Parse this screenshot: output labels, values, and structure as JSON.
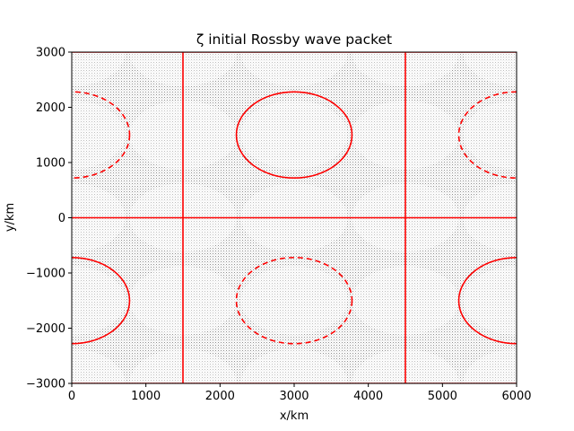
{
  "chart_data": {
    "type": "contour",
    "title": "ζ initial Rossby wave packet",
    "xlabel": "x/km",
    "ylabel": "y/km",
    "xlim": [
      0,
      6000
    ],
    "ylim": [
      -3000,
      3000
    ],
    "xticks": [
      0,
      1000,
      2000,
      3000,
      4000,
      5000,
      6000
    ],
    "yticks": [
      -3000,
      -2000,
      -1000,
      0,
      1000,
      2000,
      3000
    ],
    "xtick_labels": [
      "0",
      "1000",
      "2000",
      "3000",
      "4000",
      "5000",
      "6000"
    ],
    "ytick_labels": [
      "−3000",
      "−2000",
      "−1000",
      "0",
      "1000",
      "2000",
      "3000"
    ],
    "grid": false,
    "background": "dense grey quiver/stipple field",
    "contour_color": "#ff0000",
    "zero_contours": {
      "vertical_x": [
        1500,
        4500
      ],
      "horizontal_y": [
        0
      ]
    },
    "positive_contours": [
      {
        "cx": 3000,
        "cy": 1500,
        "rx": 780,
        "ry": 780
      },
      {
        "cx": 0,
        "cy": -1500,
        "rx": 780,
        "ry": 780
      },
      {
        "cx": 6000,
        "cy": -1500,
        "rx": 780,
        "ry": 780
      }
    ],
    "negative_contours": [
      {
        "cx": 0,
        "cy": 1500,
        "rx": 780,
        "ry": 780
      },
      {
        "cx": 6000,
        "cy": 1500,
        "rx": 780,
        "ry": 780
      },
      {
        "cx": 3000,
        "cy": -1500,
        "rx": 780,
        "ry": 780
      }
    ],
    "shaded_blobs": [
      {
        "x": 0,
        "y": 3000
      },
      {
        "x": 1500,
        "y": 3000
      },
      {
        "x": 3000,
        "y": 3000
      },
      {
        "x": 4500,
        "y": 3000
      },
      {
        "x": 6000,
        "y": 3000
      },
      {
        "x": 0,
        "y": 1500
      },
      {
        "x": 1500,
        "y": 1500
      },
      {
        "x": 3000,
        "y": 1500
      },
      {
        "x": 4500,
        "y": 1500
      },
      {
        "x": 6000,
        "y": 1500
      },
      {
        "x": 0,
        "y": 0
      },
      {
        "x": 1500,
        "y": 0
      },
      {
        "x": 3000,
        "y": 0
      },
      {
        "x": 4500,
        "y": 0
      },
      {
        "x": 6000,
        "y": 0
      },
      {
        "x": 0,
        "y": -1500
      },
      {
        "x": 1500,
        "y": -1500
      },
      {
        "x": 3000,
        "y": -1500
      },
      {
        "x": 4500,
        "y": -1500
      },
      {
        "x": 6000,
        "y": -1500
      },
      {
        "x": 0,
        "y": -3000
      },
      {
        "x": 1500,
        "y": -3000
      },
      {
        "x": 3000,
        "y": -3000
      },
      {
        "x": 4500,
        "y": -3000
      },
      {
        "x": 6000,
        "y": -3000
      }
    ]
  }
}
